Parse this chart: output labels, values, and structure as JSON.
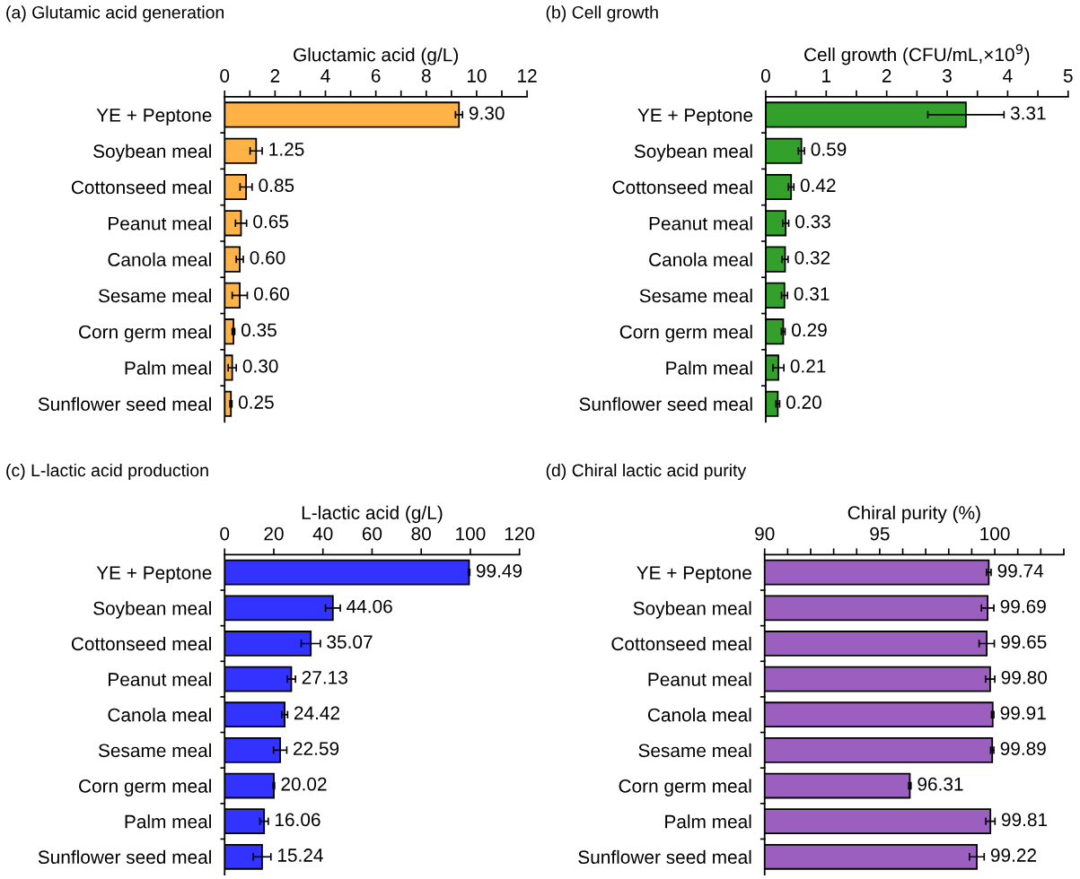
{
  "chart_data": [
    {
      "type": "bar",
      "orientation": "horizontal",
      "title": "(a) Glutamic acid generation",
      "xlabel": "Gluctamic acid (g/L)",
      "color": "#ffb347",
      "categories": [
        "YE + Peptone",
        "Soybean meal",
        "Cottonseed meal",
        "Peanut meal",
        "Canola meal",
        "Sesame meal",
        "Corn germ meal",
        "Palm meal",
        "Sunflower seed meal"
      ],
      "values": [
        9.3,
        1.25,
        0.85,
        0.65,
        0.6,
        0.6,
        0.35,
        0.3,
        0.25
      ],
      "errors": [
        0.14,
        0.24,
        0.24,
        0.22,
        0.14,
        0.3,
        0.05,
        0.16,
        0.04
      ],
      "value_labels": [
        "9.30",
        "1.25",
        "0.85",
        "0.65",
        "0.60",
        "0.60",
        "0.35",
        "0.30",
        "0.25"
      ],
      "xlim": [
        0,
        12
      ],
      "xticks": [
        0,
        {
          "value": 1,
          "label": null
        },
        2,
        {
          "value": 3,
          "label": null
        },
        4,
        {
          "value": 5,
          "label": null
        },
        6,
        {
          "value": 7,
          "label": null
        },
        8,
        {
          "value": 9,
          "label": null
        },
        10,
        {
          "value": 11,
          "label": null
        },
        12
      ]
    },
    {
      "type": "bar",
      "orientation": "horizontal",
      "title": "(b) Cell growth",
      "xlabel": "Cell growth (CFU/mL,×10$^{9}$)",
      "color": "#33a02c",
      "categories": [
        "YE + Peptone",
        "Soybean meal",
        "Cottonseed meal",
        "Peanut meal",
        "Canola meal",
        "Sesame meal",
        "Corn germ meal",
        "Palm meal",
        "Sunflower seed meal"
      ],
      "values": [
        3.31,
        0.59,
        0.42,
        0.33,
        0.32,
        0.31,
        0.29,
        0.21,
        0.2
      ],
      "errors": [
        0.63,
        0.05,
        0.045,
        0.05,
        0.05,
        0.05,
        0.03,
        0.09,
        0.03
      ],
      "value_labels": [
        "3.31",
        "0.59",
        "0.42",
        "0.33",
        "0.32",
        "0.31",
        "0.29",
        "0.21",
        "0.20"
      ],
      "xlim": [
        0,
        5
      ],
      "xticks": [
        0,
        {
          "value": 0.5,
          "label": null
        },
        1,
        {
          "value": 1.5,
          "label": null
        },
        2,
        {
          "value": 2.5,
          "label": null
        },
        3,
        {
          "value": 3.5,
          "label": null
        },
        4,
        {
          "value": 4.5,
          "label": null
        },
        5
      ]
    },
    {
      "type": "bar",
      "orientation": "horizontal",
      "title": "(c) L-lactic acid production",
      "xlabel": "L-lactic acid (g/L)",
      "color": "#3333ff",
      "categories": [
        "YE + Peptone",
        "Soybean meal",
        "Cottonseed meal",
        "Peanut meal",
        "Canola meal",
        "Sesame meal",
        "Corn germ meal",
        "Palm meal",
        "Sunflower seed meal"
      ],
      "values": [
        99.49,
        44.06,
        35.07,
        27.13,
        24.42,
        22.59,
        20.02,
        16.06,
        15.24
      ],
      "errors": [
        0.3,
        3.0,
        3.9,
        1.7,
        1.2,
        2.7,
        0.3,
        1.7,
        3.6
      ],
      "value_labels": [
        "99.49",
        "44.06",
        "35.07",
        "27.13",
        "24.42",
        "22.59",
        "20.02",
        "16.06",
        "15.24"
      ],
      "xlim": [
        0,
        120
      ],
      "xticks": [
        0,
        20,
        40,
        60,
        80,
        100,
        120
      ]
    },
    {
      "type": "bar",
      "orientation": "horizontal",
      "title": "(d) Chiral lactic acid purity",
      "xlabel": "Chiral purity (%)",
      "color": "#9b5fc0",
      "categories": [
        "YE + Peptone",
        "Soybean meal",
        "Cottonseed meal",
        "Peanut meal",
        "Canola meal",
        "Sesame meal",
        "Corn germ meal",
        "Palm meal",
        "Sunflower seed meal"
      ],
      "values": [
        99.74,
        99.69,
        99.65,
        99.8,
        99.91,
        99.89,
        96.31,
        99.81,
        99.22
      ],
      "errors": [
        0.1,
        0.27,
        0.33,
        0.2,
        0.05,
        0.07,
        0.05,
        0.2,
        0.32
      ],
      "value_labels": [
        "99.74",
        "99.69",
        "99.65",
        "99.80",
        "99.91",
        "99.89",
        "96.31",
        "99.81",
        "99.22"
      ],
      "xlim": [
        90,
        103
      ],
      "xticks": [
        90,
        {
          "value": 91,
          "label": null
        },
        {
          "value": 92,
          "label": null
        },
        {
          "value": 93,
          "label": null
        },
        {
          "value": 94,
          "label": null
        },
        95,
        {
          "value": 96,
          "label": null
        },
        {
          "value": 97,
          "label": null
        },
        {
          "value": 98,
          "label": null
        },
        {
          "value": 99,
          "label": null
        },
        100,
        {
          "value": 101,
          "label": null
        },
        {
          "value": 102,
          "label": null
        },
        {
          "value": 103,
          "label": null
        }
      ]
    }
  ]
}
